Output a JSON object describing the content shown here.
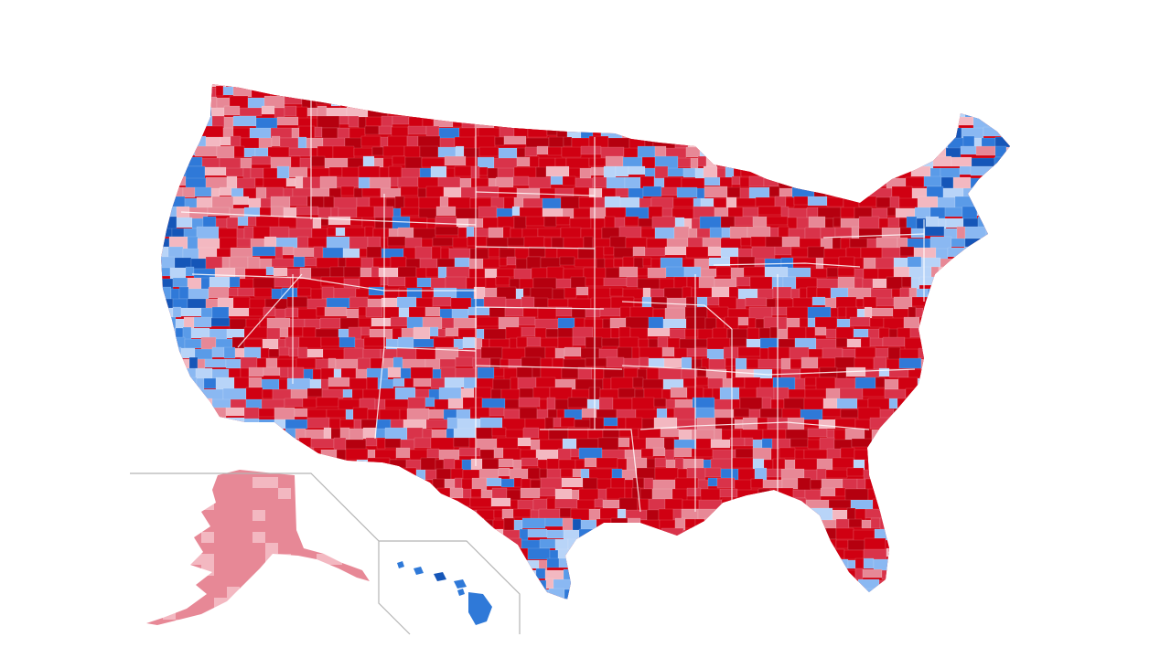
{
  "map": {
    "colors": {
      "strong_republican": "#b5000f",
      "republican": "#d00012",
      "lean_republican": "#d9334a",
      "tilt_republican": "#e78896",
      "lightest_republican": "#f3b8c1",
      "lightest_democrat": "#b8d4f8",
      "tilt_democrat": "#8ab8f2",
      "lean_democrat": "#5a9be8",
      "democrat": "#2f79d8",
      "strong_democrat": "#1556b8",
      "border": "#ffffff",
      "inset_frame": "#b5b5b5",
      "background": "#ffffff"
    },
    "regions": [
      {
        "name": "contiguous-us",
        "dominant": "republican"
      },
      {
        "name": "alaska",
        "dominant": "tilt_republican"
      },
      {
        "name": "hawaii",
        "dominant": "democrat"
      }
    ]
  }
}
